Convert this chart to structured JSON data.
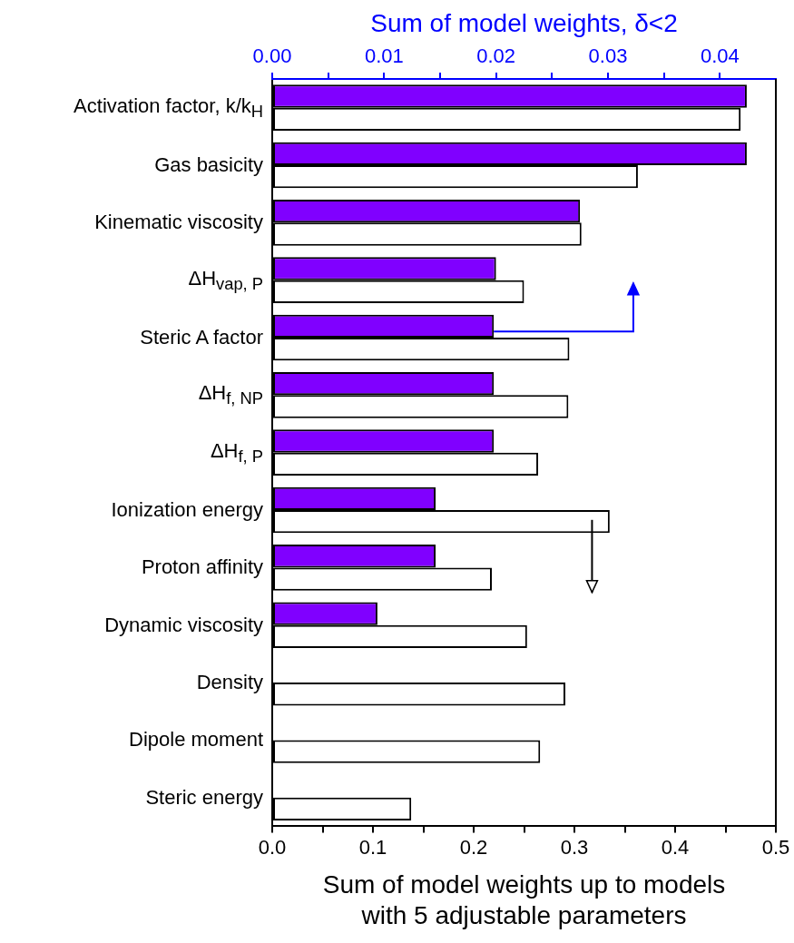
{
  "chart_data": {
    "type": "bar",
    "orientation": "horizontal",
    "x2label": "Sum of model weights, δ<2",
    "xlabel": "Sum of model weights up to models with 5 adjustable parameters",
    "categories": [
      "Activation factor, k/k$_{H}$",
      "Gas basicity",
      "Kinematic viscosity",
      "ΔH$_{vap, P}$",
      "Steric A factor",
      "ΔH$_{f, NP}$",
      "ΔH$_{f, P}$",
      "Ionization energy",
      "Proton affinity",
      "Dynamic viscosity",
      "Density",
      "Dipole moment",
      "Steric energy"
    ],
    "series": [
      {
        "color": "#8000ff",
        "axis": "x2",
        "values": [
          0.0424,
          0.0424,
          0.0275,
          0.02,
          0.0198,
          0.0198,
          0.0198,
          0.0146,
          0.0146,
          0.0094,
          null,
          null,
          null
        ]
      },
      {
        "color": "#ffffff",
        "values": [
          0.465,
          0.363,
          0.307,
          0.25,
          0.295,
          0.294,
          0.264,
          0.335,
          0.218,
          0.253,
          0.291,
          0.266,
          0.138
        ]
      }
    ],
    "xlim": [
      0,
      0.5
    ],
    "xticks": [
      {
        "value": 0,
        "label": "0.0"
      },
      {
        "value": 0.05,
        "label": null
      },
      0.1,
      {
        "value": 0.15,
        "label": null
      },
      0.2,
      {
        "value": 0.25,
        "label": null
      },
      0.3,
      {
        "value": 0.35,
        "label": null
      },
      0.4,
      {
        "value": 0.45,
        "label": null
      },
      0.5
    ],
    "x2lim": [
      0,
      0.045
    ],
    "x2ticks": [
      {
        "value": 0,
        "label": "0.00"
      },
      {
        "value": 0.005,
        "label": null
      },
      0.01,
      {
        "value": 0.015,
        "label": null
      },
      0.02,
      {
        "value": 0.025,
        "label": null
      },
      0.03,
      {
        "value": 0.035,
        "label": null
      },
      0.04
    ]
  }
}
